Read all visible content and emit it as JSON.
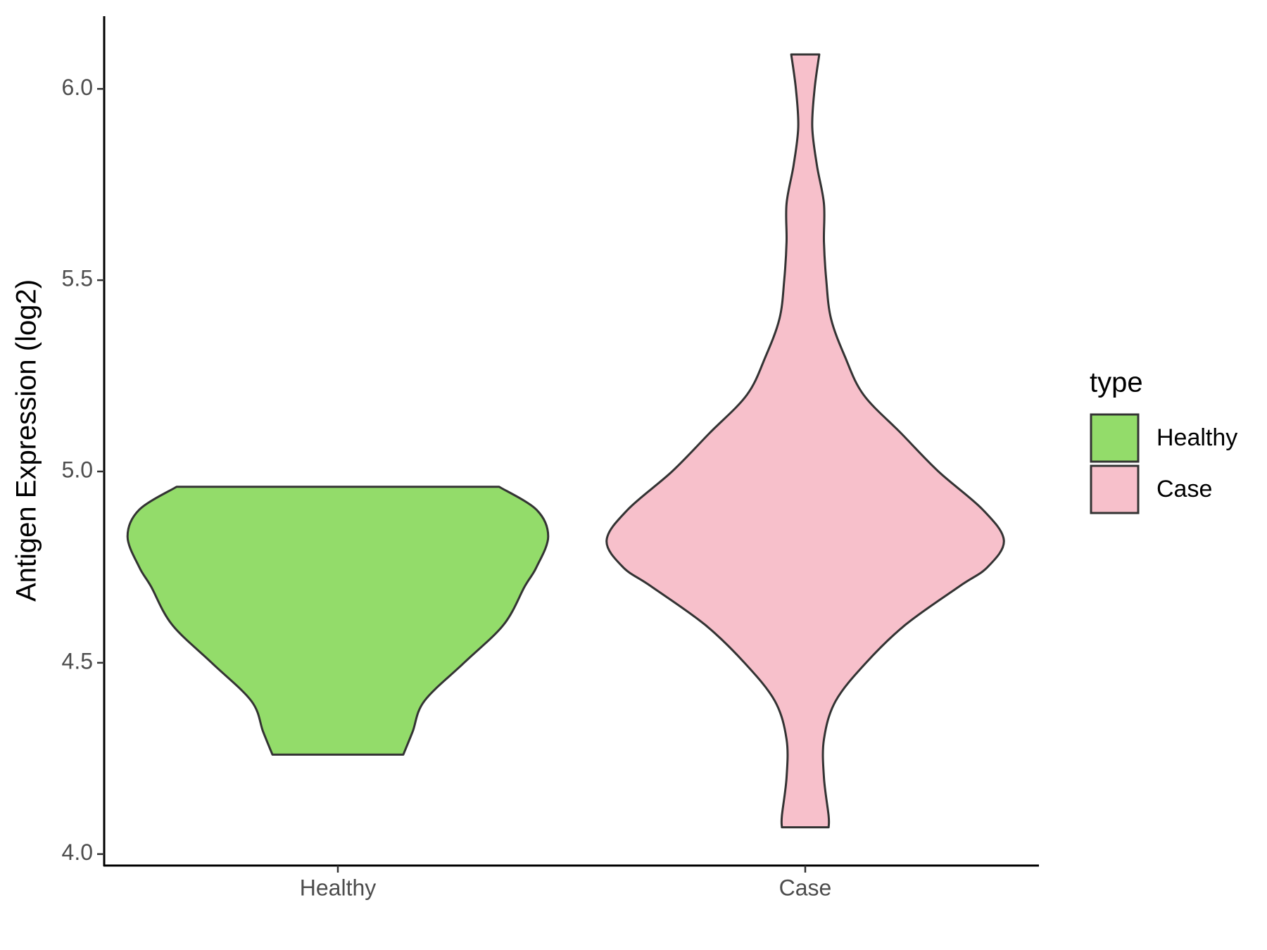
{
  "chart_data": {
    "type": "violin",
    "ylabel": "Antigen Expression (log2)",
    "legend_title": "type",
    "legend_position": "right",
    "categories": [
      "Healthy",
      "Case"
    ],
    "ylim": [
      3.97,
      6.19
    ],
    "yticks": [
      {
        "value": 4,
        "label": "4.0"
      },
      4.5,
      {
        "value": 5,
        "label": "5.0"
      },
      5.5,
      {
        "value": 6,
        "label": "6.0"
      }
    ],
    "grid": false,
    "series": [
      {
        "name": "Healthy",
        "color": "#93dc6a",
        "values": [
          4.96,
          4.9,
          4.83,
          4.75,
          4.7,
          4.6,
          4.5,
          4.4,
          4.32,
          4.26
        ],
        "density": [
          0.69,
          0.85,
          0.9,
          0.85,
          0.8,
          0.71,
          0.54,
          0.37,
          0.32,
          0.28
        ]
      },
      {
        "name": "Case",
        "color": "#f7c0cb",
        "values": [
          6.09,
          6.0,
          5.9,
          5.8,
          5.7,
          5.6,
          5.5,
          5.4,
          5.3,
          5.2,
          5.1,
          5.0,
          4.9,
          4.82,
          4.75,
          4.7,
          4.6,
          4.5,
          4.4,
          4.3,
          4.2,
          4.1,
          4.07
        ],
        "density": [
          0.06,
          0.04,
          0.03,
          0.05,
          0.08,
          0.08,
          0.09,
          0.11,
          0.17,
          0.25,
          0.41,
          0.57,
          0.76,
          0.85,
          0.78,
          0.66,
          0.43,
          0.26,
          0.13,
          0.08,
          0.08,
          0.1,
          0.1
        ]
      }
    ]
  }
}
